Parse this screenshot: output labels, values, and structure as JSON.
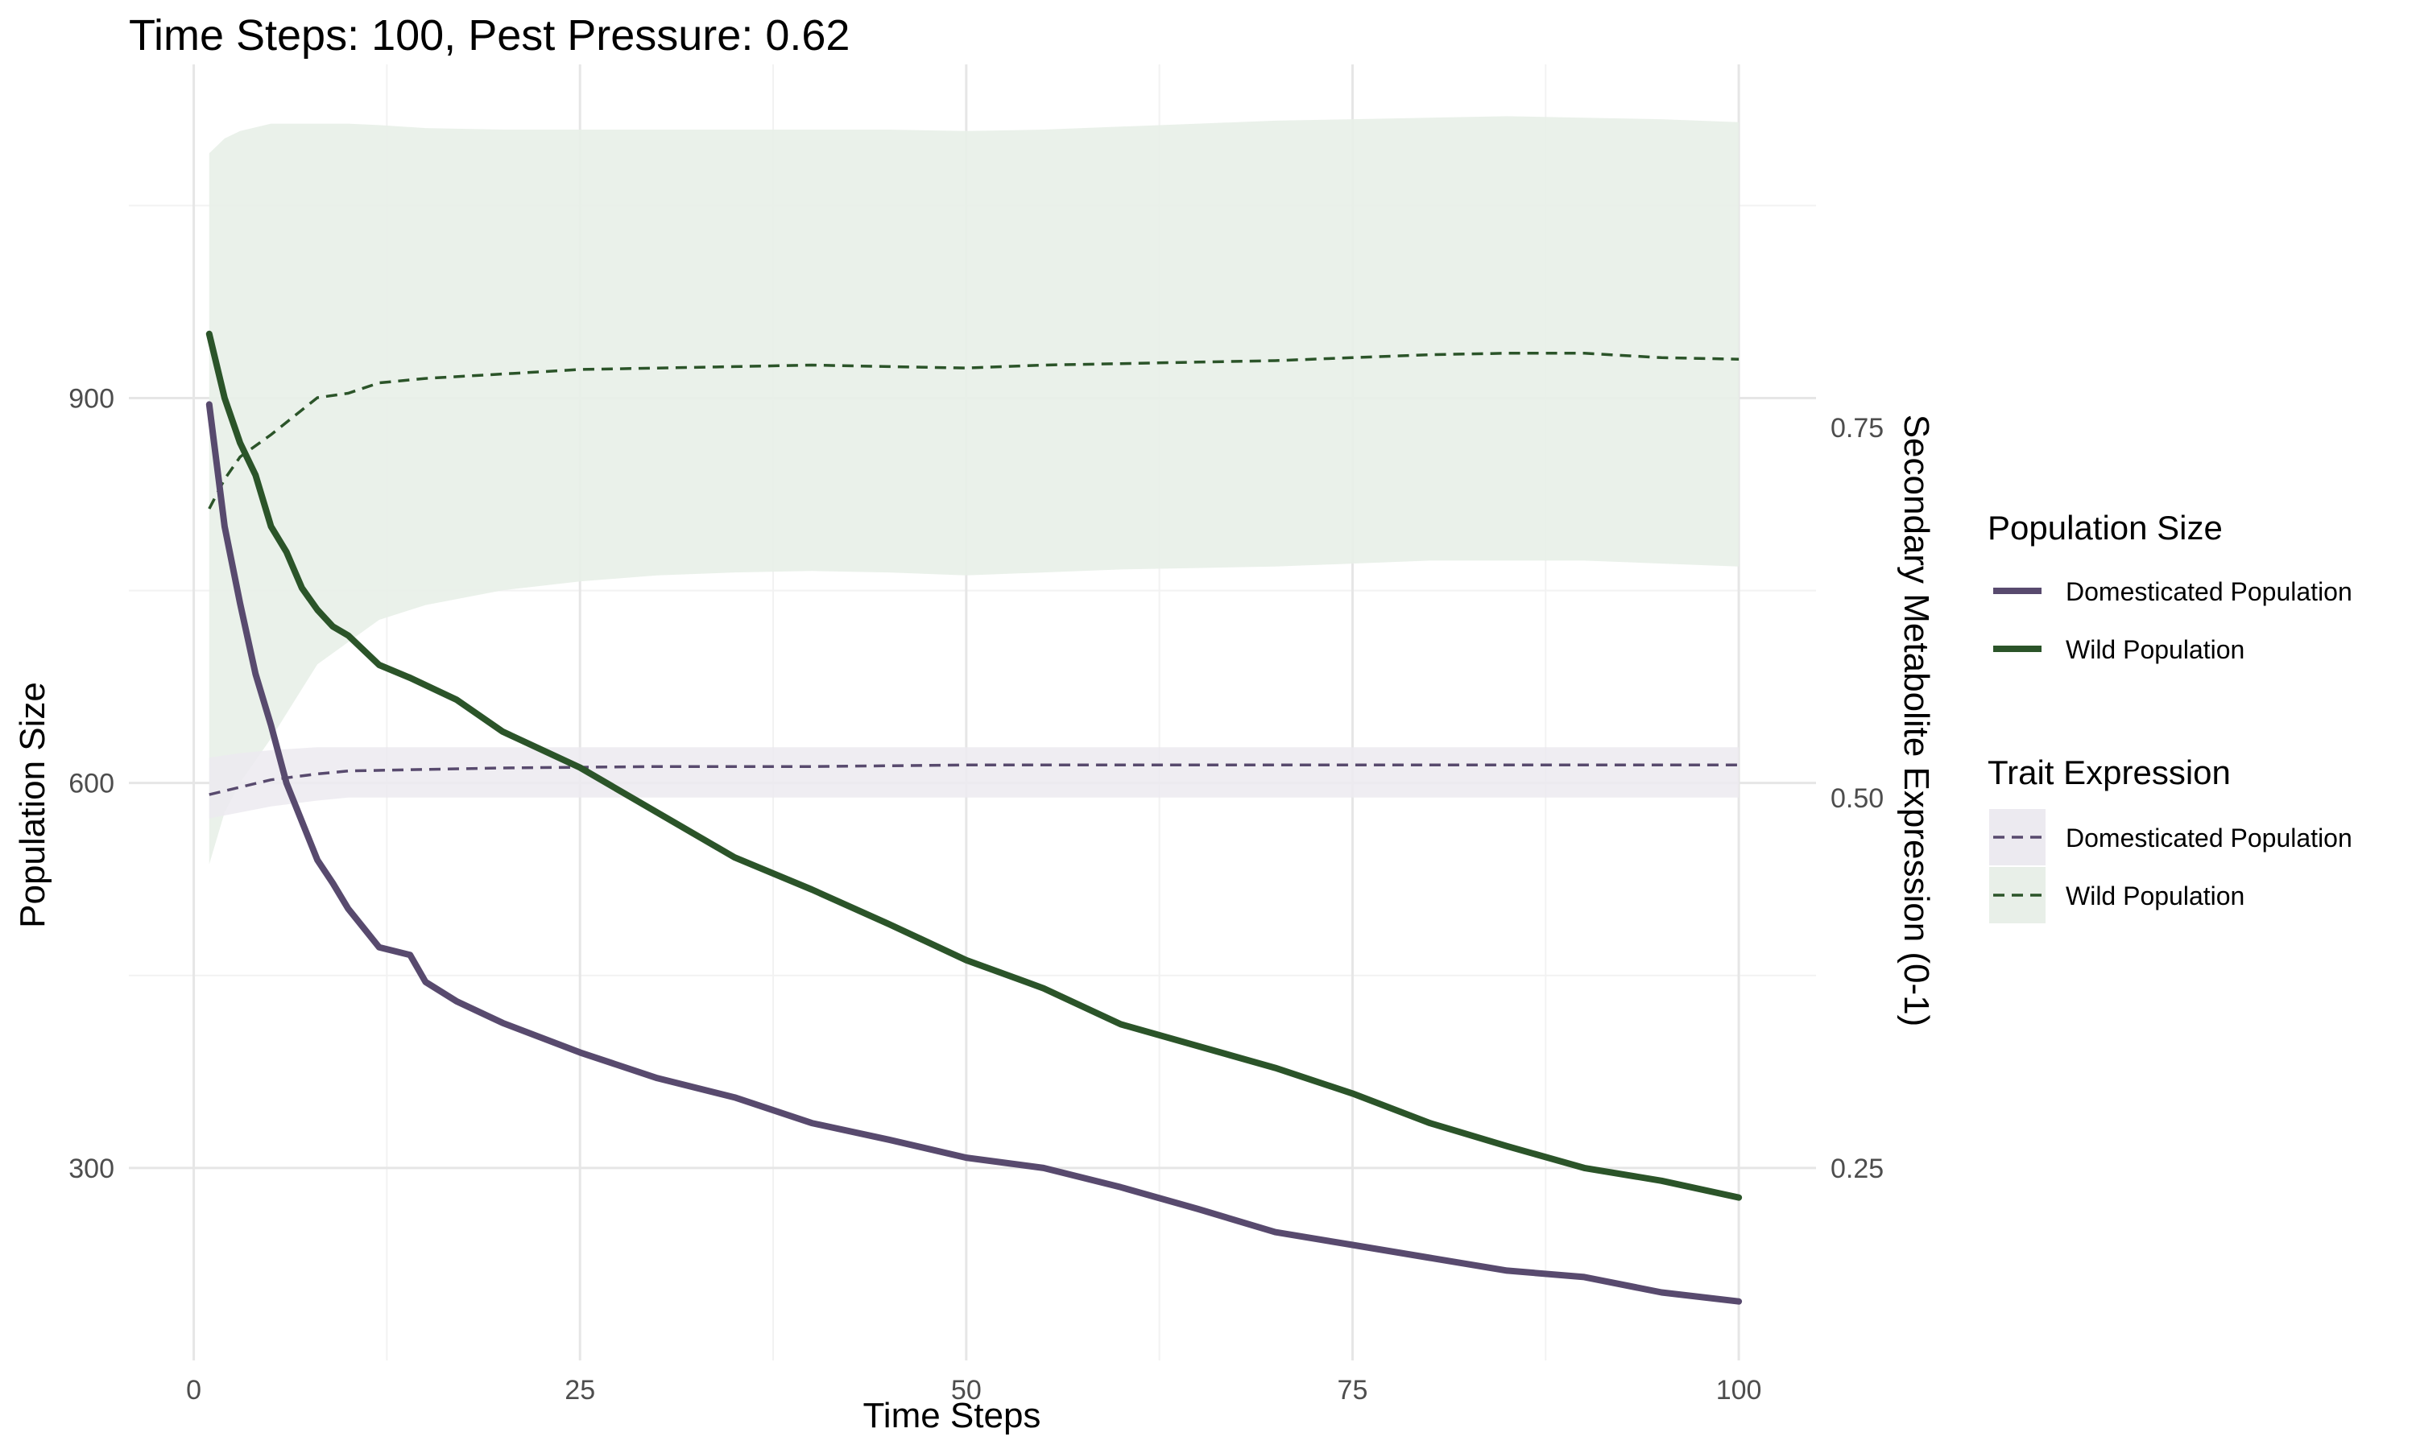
{
  "chart_data": {
    "type": "line",
    "title": "Time Steps: 100, Pest Pressure: 0.62",
    "xlabel": "Time Steps",
    "ylabel": "Population Size",
    "y2label": "Secondary Metabolite Expression (0-1)",
    "xlim": [
      -4.2,
      105
    ],
    "ylim": [
      150,
      1160
    ],
    "y2lim": [
      0.12,
      0.995
    ],
    "x_ticks": [
      0,
      25,
      50,
      75,
      100
    ],
    "y_ticks": [
      300,
      600,
      900
    ],
    "y2_ticks": [
      0.25,
      0.5,
      0.75
    ],
    "x_tick_labels": [
      "0",
      "25",
      "50",
      "75",
      "100"
    ],
    "y_tick_labels": [
      "300",
      "600",
      "900"
    ],
    "y2_tick_labels": [
      "0.25",
      "0.50",
      "0.75"
    ],
    "grid": true,
    "legend_position": "right",
    "colors": {
      "domesticated": "#584a6e",
      "wild": "#2b5429",
      "domesticated_band": "#eceaf0",
      "wild_band": "#e8efe8",
      "grid_major": "#e6e6e6",
      "grid_minor": "#f2f2f2"
    },
    "population_series": [
      {
        "name": "Domesticated Population",
        "x": [
          1,
          2,
          3,
          4,
          5,
          6,
          7,
          8,
          9,
          10,
          12,
          14,
          15,
          17,
          20,
          25,
          30,
          35,
          40,
          45,
          50,
          55,
          60,
          65,
          70,
          75,
          80,
          85,
          90,
          95,
          100
        ],
        "y": [
          895,
          800,
          740,
          685,
          645,
          600,
          570,
          540,
          522,
          502,
          472,
          466,
          445,
          430,
          413,
          390,
          370,
          355,
          335,
          322,
          308,
          300,
          285,
          268,
          250,
          240,
          230,
          220,
          215,
          203,
          196
        ]
      },
      {
        "name": "Wild Population",
        "x": [
          1,
          2,
          3,
          4,
          5,
          6,
          7,
          8,
          9,
          10,
          12,
          14,
          17,
          20,
          25,
          30,
          35,
          40,
          45,
          50,
          55,
          60,
          65,
          70,
          75,
          80,
          85,
          90,
          95,
          100
        ],
        "y": [
          950,
          900,
          865,
          840,
          800,
          780,
          752,
          735,
          722,
          715,
          692,
          682,
          665,
          640,
          612,
          577,
          542,
          517,
          490,
          462,
          440,
          412,
          395,
          378,
          358,
          335,
          317,
          300,
          290,
          277
        ]
      }
    ],
    "trait_series": [
      {
        "name": "Domesticated Population",
        "x": [
          1,
          3,
          5,
          8,
          10,
          15,
          20,
          30,
          40,
          50,
          60,
          70,
          80,
          90,
          100
        ],
        "mean": [
          0.502,
          0.507,
          0.512,
          0.516,
          0.518,
          0.519,
          0.52,
          0.521,
          0.521,
          0.522,
          0.522,
          0.522,
          0.522,
          0.522,
          0.522
        ],
        "lower": [
          0.486,
          0.49,
          0.494,
          0.498,
          0.5,
          0.5,
          0.5,
          0.5,
          0.5,
          0.5,
          0.5,
          0.5,
          0.5,
          0.5,
          0.5
        ],
        "upper": [
          0.527,
          0.53,
          0.532,
          0.534,
          0.534,
          0.534,
          0.534,
          0.534,
          0.534,
          0.534,
          0.534,
          0.534,
          0.534,
          0.534,
          0.534
        ]
      },
      {
        "name": "Wild Population",
        "x": [
          1,
          2,
          3,
          5,
          8,
          10,
          12,
          15,
          20,
          25,
          30,
          35,
          40,
          45,
          50,
          55,
          60,
          65,
          70,
          75,
          80,
          85,
          90,
          95,
          100
        ],
        "mean": [
          0.695,
          0.715,
          0.73,
          0.745,
          0.77,
          0.773,
          0.78,
          0.783,
          0.786,
          0.789,
          0.79,
          0.791,
          0.792,
          0.791,
          0.79,
          0.792,
          0.793,
          0.794,
          0.795,
          0.797,
          0.799,
          0.8,
          0.8,
          0.797,
          0.796
        ],
        "lower": [
          0.455,
          0.49,
          0.51,
          0.54,
          0.59,
          0.605,
          0.62,
          0.63,
          0.64,
          0.646,
          0.65,
          0.652,
          0.653,
          0.652,
          0.65,
          0.652,
          0.654,
          0.655,
          0.656,
          0.658,
          0.66,
          0.66,
          0.66,
          0.658,
          0.656
        ],
        "upper": [
          0.935,
          0.945,
          0.95,
          0.955,
          0.955,
          0.955,
          0.954,
          0.952,
          0.951,
          0.951,
          0.951,
          0.951,
          0.951,
          0.951,
          0.95,
          0.951,
          0.953,
          0.955,
          0.957,
          0.958,
          0.959,
          0.96,
          0.959,
          0.958,
          0.956
        ]
      }
    ],
    "legend": {
      "population_title": "Population Size",
      "trait_title": "Trait Expression",
      "population_items": [
        "Domesticated Population",
        "Wild Population"
      ],
      "trait_items": [
        "Domesticated Population",
        "Wild Population"
      ]
    }
  }
}
